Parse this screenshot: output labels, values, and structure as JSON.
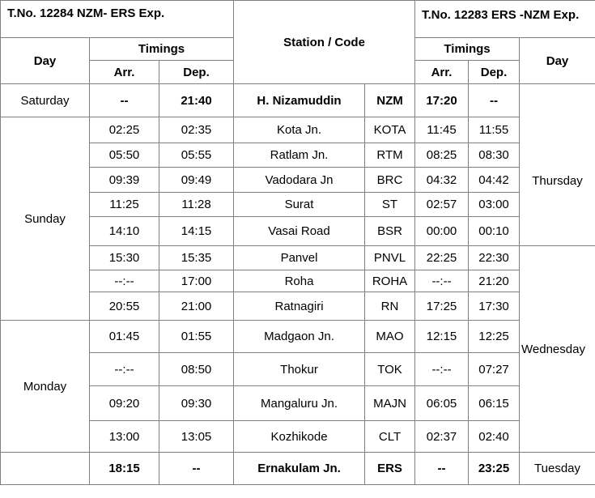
{
  "header": {
    "train_left": "T.No. 12284 NZM- ERS Exp.",
    "train_right": "T.No. 12283 ERS -NZM Exp.",
    "station_code": "Station / Code",
    "day": "Day",
    "timings": "Timings",
    "arr": "Arr.",
    "dep": "Dep."
  },
  "days": {
    "saturday": "Saturday",
    "sunday": "Sunday",
    "monday": "Monday",
    "thursday": "Thursday",
    "wednesday": "Wednesday",
    "tuesday": "Tuesday"
  },
  "rows": [
    {
      "arr": "--",
      "dep": "21:40",
      "station": "H. Nizamuddin",
      "code": "NZM",
      "r_arr": "17:20",
      "r_dep": "--"
    },
    {
      "arr": "02:25",
      "dep": "02:35",
      "station": "Kota Jn.",
      "code": "KOTA",
      "r_arr": "11:45",
      "r_dep": "11:55"
    },
    {
      "arr": "05:50",
      "dep": "05:55",
      "station": "Ratlam Jn.",
      "code": "RTM",
      "r_arr": "08:25",
      "r_dep": "08:30"
    },
    {
      "arr": "09:39",
      "dep": "09:49",
      "station": "Vadodara Jn",
      "code": "BRC",
      "r_arr": "04:32",
      "r_dep": "04:42"
    },
    {
      "arr": "11:25",
      "dep": "11:28",
      "station": "Surat",
      "code": "ST",
      "r_arr": "02:57",
      "r_dep": "03:00"
    },
    {
      "arr": "14:10",
      "dep": "14:15",
      "station": "Vasai Road",
      "code": "BSR",
      "r_arr": "00:00",
      "r_dep": "00:10"
    },
    {
      "arr": "15:30",
      "dep": "15:35",
      "station": "Panvel",
      "code": "PNVL",
      "r_arr": "22:25",
      "r_dep": "22:30"
    },
    {
      "arr": "--:--",
      "dep": "17:00",
      "station": "Roha",
      "code": "ROHA",
      "r_arr": "--:--",
      "r_dep": "21:20"
    },
    {
      "arr": "20:55",
      "dep": "21:00",
      "station": "Ratnagiri",
      "code": "RN",
      "r_arr": "17:25",
      "r_dep": "17:30"
    },
    {
      "arr": "01:45",
      "dep": "01:55",
      "station": "Madgaon Jn.",
      "code": "MAO",
      "r_arr": "12:15",
      "r_dep": "12:25"
    },
    {
      "arr": "--:--",
      "dep": "08:50",
      "station": "Thokur",
      "code": "TOK",
      "r_arr": "--:--",
      "r_dep": "07:27"
    },
    {
      "arr": "09:20",
      "dep": "09:30",
      "station": "Mangaluru Jn.",
      "code": "MAJN",
      "r_arr": "06:05",
      "r_dep": "06:15"
    },
    {
      "arr": "13:00",
      "dep": "13:05",
      "station": "Kozhikode",
      "code": "CLT",
      "r_arr": "02:37",
      "r_dep": "02:40"
    },
    {
      "arr": "18:15",
      "dep": "--",
      "station": "Ernakulam Jn.",
      "code": "ERS",
      "r_arr": "--",
      "r_dep": "23:25"
    }
  ]
}
